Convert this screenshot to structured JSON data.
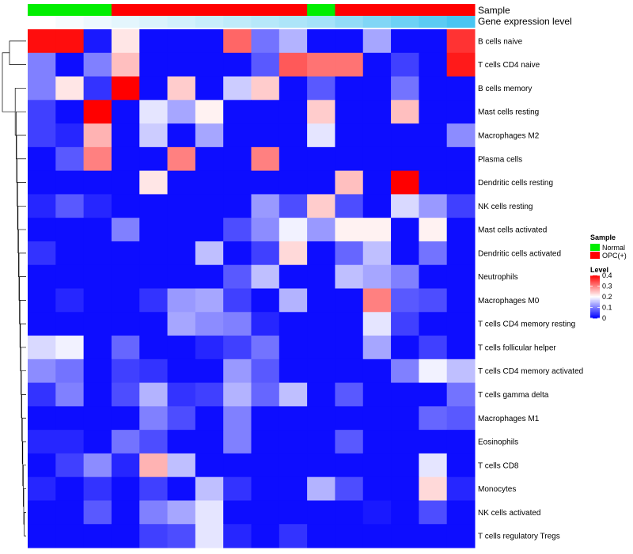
{
  "chart_data": {
    "type": "heatmap",
    "title": "",
    "value_range": [
      0,
      0.4
    ],
    "palette": {
      "low": "#0000ff",
      "mid": "#ffffff",
      "high": "#ff0000",
      "mid_value": 0.2
    },
    "tracks": {
      "sample_label": "Sample",
      "expression_label": "Gene expression level",
      "samples": [
        "Normal",
        "Normal",
        "Normal",
        "OPC(+)",
        "OPC(+)",
        "OPC(+)",
        "OPC(+)",
        "OPC(+)",
        "OPC(+)",
        "OPC(+)",
        "Normal",
        "OPC(+)",
        "OPC(+)",
        "OPC(+)",
        "OPC(+)",
        "OPC(+)"
      ],
      "expression": [
        0.0,
        0.02,
        0.04,
        0.06,
        0.08,
        0.1,
        0.12,
        0.14,
        0.16,
        0.18,
        0.2,
        0.24,
        0.28,
        0.32,
        0.36,
        0.4
      ],
      "sample_colors": {
        "Normal": "#00ee00",
        "OPC(+)": "#ff0000"
      },
      "expression_colors": {
        "low": "#ffffff",
        "high": "#49c5f2"
      }
    },
    "rows": [
      {
        "label": "B cells naive",
        "values": [
          0.39,
          0.39,
          0.02,
          0.22,
          0.01,
          0.01,
          0.01,
          0.32,
          0.09,
          0.14,
          0.01,
          0.01,
          0.13,
          0.01,
          0.01,
          0.36
        ]
      },
      {
        "label": "T cells CD4 naive",
        "values": [
          0.1,
          0.01,
          0.1,
          0.25,
          0.01,
          0.01,
          0.01,
          0.01,
          0.07,
          0.33,
          0.31,
          0.31,
          0.01,
          0.05,
          0.01,
          0.38
        ]
      },
      {
        "label": "B cells memory",
        "values": [
          0.1,
          0.22,
          0.04,
          0.4,
          0.01,
          0.24,
          0.01,
          0.16,
          0.24,
          0.01,
          0.07,
          0.01,
          0.01,
          0.09,
          0.01,
          0.01
        ]
      },
      {
        "label": "Mast cells resting",
        "values": [
          0.05,
          0.01,
          0.4,
          0.01,
          0.18,
          0.13,
          0.21,
          0.01,
          0.01,
          0.01,
          0.24,
          0.01,
          0.01,
          0.25,
          0.01,
          0.01
        ]
      },
      {
        "label": "Macrophages M2",
        "values": [
          0.05,
          0.03,
          0.26,
          0.01,
          0.16,
          0.01,
          0.13,
          0.01,
          0.01,
          0.01,
          0.18,
          0.01,
          0.01,
          0.01,
          0.01,
          0.11
        ]
      },
      {
        "label": "Plasma cells",
        "values": [
          0.01,
          0.07,
          0.3,
          0.01,
          0.01,
          0.3,
          0.01,
          0.01,
          0.3,
          0.01,
          0.01,
          0.01,
          0.01,
          0.01,
          0.01,
          0.01
        ]
      },
      {
        "label": "Dendritic cells resting",
        "values": [
          0.01,
          0.01,
          0.01,
          0.01,
          0.22,
          0.01,
          0.01,
          0.01,
          0.01,
          0.01,
          0.01,
          0.25,
          0.01,
          0.4,
          0.01,
          0.01
        ]
      },
      {
        "label": "NK cells resting",
        "values": [
          0.03,
          0.07,
          0.03,
          0.01,
          0.01,
          0.01,
          0.01,
          0.01,
          0.12,
          0.06,
          0.24,
          0.06,
          0.01,
          0.17,
          0.12,
          0.05
        ]
      },
      {
        "label": "Mast cells activated",
        "values": [
          0.01,
          0.01,
          0.01,
          0.1,
          0.01,
          0.01,
          0.01,
          0.06,
          0.11,
          0.19,
          0.12,
          0.21,
          0.21,
          0.01,
          0.21,
          0.01
        ]
      },
      {
        "label": "Dendritic cells activated",
        "values": [
          0.04,
          0.01,
          0.01,
          0.01,
          0.01,
          0.01,
          0.15,
          0.01,
          0.05,
          0.23,
          0.01,
          0.08,
          0.15,
          0.01,
          0.09,
          0.01
        ]
      },
      {
        "label": "Neutrophils",
        "values": [
          0.01,
          0.01,
          0.01,
          0.01,
          0.01,
          0.01,
          0.01,
          0.07,
          0.15,
          0.01,
          0.01,
          0.15,
          0.13,
          0.1,
          0.01,
          0.01
        ]
      },
      {
        "label": "Macrophages M0",
        "values": [
          0.01,
          0.03,
          0.01,
          0.01,
          0.04,
          0.12,
          0.13,
          0.05,
          0.01,
          0.14,
          0.01,
          0.01,
          0.3,
          0.07,
          0.06,
          0.01
        ]
      },
      {
        "label": "T cells CD4 memory resting",
        "values": [
          0.01,
          0.01,
          0.01,
          0.01,
          0.01,
          0.13,
          0.11,
          0.1,
          0.03,
          0.01,
          0.01,
          0.01,
          0.18,
          0.05,
          0.01,
          0.01
        ]
      },
      {
        "label": "T cells follicular helper",
        "values": [
          0.17,
          0.19,
          0.01,
          0.08,
          0.01,
          0.01,
          0.03,
          0.05,
          0.09,
          0.01,
          0.01,
          0.01,
          0.13,
          0.01,
          0.05,
          0.01
        ]
      },
      {
        "label": "T cells CD4 memory activated",
        "values": [
          0.11,
          0.09,
          0.01,
          0.05,
          0.04,
          0.01,
          0.01,
          0.12,
          0.07,
          0.01,
          0.01,
          0.01,
          0.01,
          0.1,
          0.19,
          0.15
        ]
      },
      {
        "label": "T cells gamma delta",
        "values": [
          0.04,
          0.1,
          0.01,
          0.06,
          0.14,
          0.04,
          0.05,
          0.14,
          0.08,
          0.15,
          0.01,
          0.07,
          0.01,
          0.01,
          0.01,
          0.09
        ]
      },
      {
        "label": "Macrophages M1",
        "values": [
          0.01,
          0.01,
          0.01,
          0.01,
          0.1,
          0.06,
          0.01,
          0.1,
          0.01,
          0.01,
          0.01,
          0.01,
          0.01,
          0.01,
          0.08,
          0.07
        ]
      },
      {
        "label": "Eosinophils",
        "values": [
          0.03,
          0.03,
          0.01,
          0.09,
          0.06,
          0.01,
          0.01,
          0.1,
          0.01,
          0.01,
          0.01,
          0.07,
          0.01,
          0.01,
          0.01,
          0.01
        ]
      },
      {
        "label": "T cells CD8",
        "values": [
          0.01,
          0.05,
          0.11,
          0.03,
          0.26,
          0.15,
          0.01,
          0.01,
          0.01,
          0.01,
          0.01,
          0.01,
          0.01,
          0.01,
          0.18,
          0.01
        ]
      },
      {
        "label": "Monocytes",
        "values": [
          0.03,
          0.01,
          0.04,
          0.01,
          0.05,
          0.01,
          0.15,
          0.04,
          0.01,
          0.01,
          0.14,
          0.06,
          0.01,
          0.01,
          0.23,
          0.03
        ]
      },
      {
        "label": "NK cells activated",
        "values": [
          0.01,
          0.01,
          0.07,
          0.01,
          0.1,
          0.13,
          0.18,
          0.01,
          0.01,
          0.01,
          0.01,
          0.01,
          0.02,
          0.01,
          0.06,
          0.01
        ]
      },
      {
        "label": "T cells regulatory  Tregs",
        "values": [
          0.01,
          0.01,
          0.01,
          0.01,
          0.05,
          0.06,
          0.18,
          0.03,
          0.01,
          0.04,
          0.01,
          0.01,
          0.01,
          0.01,
          0.01,
          0.01
        ]
      }
    ],
    "dendrogram": {
      "leaf_order": [
        0,
        1,
        2,
        3,
        4,
        5,
        6,
        7,
        8,
        9,
        10,
        11,
        12,
        13,
        14,
        15,
        16,
        17,
        18,
        19,
        20,
        21
      ],
      "merges": [
        [
          20,
          21,
          0.08
        ],
        [
          19,
          -1,
          0.1
        ],
        [
          18,
          -2,
          0.12
        ],
        [
          17,
          -3,
          0.14
        ],
        [
          16,
          -4,
          0.16
        ],
        [
          15,
          -5,
          0.18
        ],
        [
          14,
          -6,
          0.2
        ],
        [
          13,
          -7,
          0.22
        ],
        [
          12,
          -8,
          0.24
        ],
        [
          11,
          -9,
          0.26
        ],
        [
          10,
          -10,
          0.28
        ],
        [
          9,
          -11,
          0.3
        ],
        [
          8,
          -12,
          0.32
        ],
        [
          7,
          -13,
          0.34
        ],
        [
          6,
          -14,
          0.36
        ],
        [
          5,
          -15,
          0.38
        ],
        [
          4,
          -16,
          0.4
        ],
        [
          3,
          -17,
          0.42
        ],
        [
          2,
          -18,
          0.46
        ],
        [
          0,
          1,
          0.7
        ],
        [
          -20,
          -19,
          1.0
        ]
      ]
    },
    "legend": {
      "sample_title": "Sample",
      "sample_entries": [
        "Normal",
        "OPC(+)"
      ],
      "level_title": "Level",
      "level_ticks": [
        "0",
        "0.1",
        "0.2",
        "0.3",
        "0.4"
      ],
      "level_tick_values": [
        0,
        0.1,
        0.2,
        0.3,
        0.4
      ]
    }
  }
}
